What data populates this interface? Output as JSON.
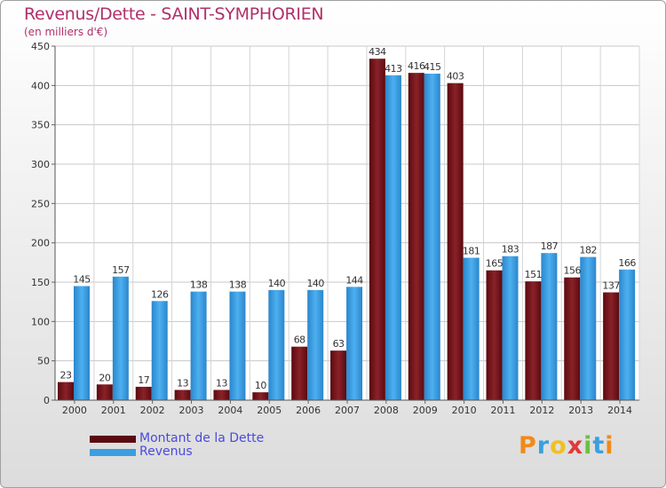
{
  "header": {
    "title": "Revenus/Dette - SAINT-SYMPHORIEN",
    "subtitle": "(en milliers d'€)"
  },
  "legend": {
    "debt": "Montant de la Dette",
    "revenue": "Revenus"
  },
  "logo": {
    "text": "Proxiti",
    "letters": [
      "P",
      "r",
      "o",
      "x",
      "i",
      "t",
      "i"
    ]
  },
  "colors": {
    "debt": "#7a1a1e",
    "revenue": "#3a9ee0",
    "title": "#b0306a",
    "legend_text": "#4a4ae0"
  },
  "chart_data": {
    "type": "bar",
    "title": "Revenus/Dette - SAINT-SYMPHORIEN",
    "subtitle": "(en milliers d'€)",
    "xlabel": "",
    "ylabel": "",
    "ylim": [
      0,
      450
    ],
    "yticks": [
      0,
      50,
      100,
      150,
      200,
      250,
      300,
      350,
      400,
      450
    ],
    "grid": true,
    "categories": [
      "2000",
      "2001",
      "2002",
      "2003",
      "2004",
      "2005",
      "2006",
      "2007",
      "2008",
      "2009",
      "2010",
      "2011",
      "2012",
      "2013",
      "2014"
    ],
    "series": [
      {
        "name": "Montant de la Dette",
        "values": [
          23,
          20,
          17,
          13,
          13,
          10,
          68,
          63,
          434,
          416,
          403,
          165,
          151,
          156,
          137
        ]
      },
      {
        "name": "Revenus",
        "values": [
          145,
          157,
          126,
          138,
          138,
          140,
          140,
          144,
          413,
          415,
          181,
          183,
          187,
          182,
          166
        ]
      }
    ]
  }
}
